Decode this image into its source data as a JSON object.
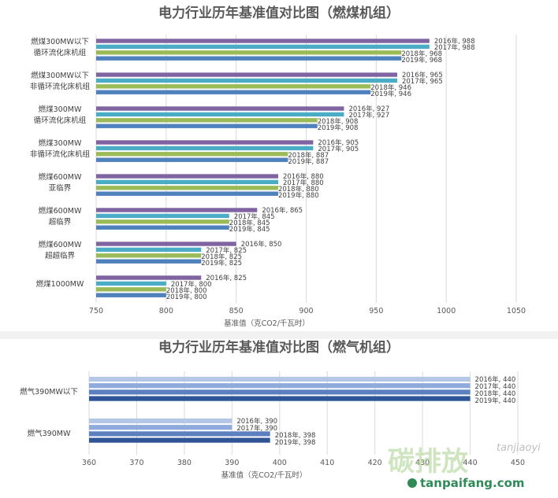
{
  "chart_data": [
    {
      "type": "bar",
      "orientation": "horizontal",
      "title": "电力行业历年基准值对比图（燃煤机组）",
      "xlabel": "基准值（克CO2/千瓦时）",
      "xlim": [
        750,
        1050
      ],
      "xticks": [
        "750",
        "800",
        "850",
        "900",
        "950",
        "1000",
        "1050"
      ],
      "grid": true,
      "categories": [
        [
          "燃煤300MW以下",
          "循环流化床机组"
        ],
        [
          "燃煤300MW以下",
          "非循环流化床机组"
        ],
        [
          "燃煤300MW",
          "循环流化床机组"
        ],
        [
          "燃煤300MW",
          "非循环流化床机组"
        ],
        [
          "燃煤600MW",
          "亚临界"
        ],
        [
          "燃煤600MW",
          "超临界"
        ],
        [
          "燃煤600MW",
          "超超临界"
        ],
        [
          "燃煤1000MW"
        ]
      ],
      "series": [
        {
          "name": "2016年",
          "color": "#8064a2",
          "values": [
            988,
            965,
            927,
            905,
            880,
            865,
            850,
            825
          ],
          "labels": [
            "2016年, 988",
            "2016年, 965",
            "2016年, 927",
            "2016年, 905",
            "2016年, 880",
            "2016年, 865",
            "2016年, 850",
            "2016年, 825"
          ]
        },
        {
          "name": "2017年",
          "color": "#4bacc6",
          "values": [
            988,
            965,
            927,
            905,
            880,
            845,
            825,
            800
          ],
          "labels": [
            "2017年, 988",
            "2017年, 965",
            "2017年, 927",
            "2017年, 905",
            "2017年, 880",
            "2017年, 845",
            "2017年, 825",
            "2017年, 800"
          ]
        },
        {
          "name": "2018年",
          "color": "#9bbb59",
          "values": [
            968,
            946,
            908,
            887,
            880,
            845,
            825,
            800
          ],
          "labels": [
            "2018年, 968",
            "2018年, 946",
            "2018年, 908",
            "2018年, 887",
            "2018年, 880",
            "2018年, 845",
            "2018年, 825",
            "2018年, 800"
          ]
        },
        {
          "name": "2019年",
          "color": "#4f81bd",
          "values": [
            968,
            946,
            908,
            887,
            880,
            845,
            825,
            800
          ],
          "labels": [
            "2019年, 968",
            "2019年, 946",
            "2019年, 908",
            "2019年, 887",
            "2019年, 880",
            "2019年, 845",
            "2019年, 825",
            "2019年, 800"
          ]
        }
      ]
    },
    {
      "type": "bar",
      "orientation": "horizontal",
      "title": "电力行业历年基准值对比图（燃气机组）",
      "xlabel": "基准值（克CO2/千瓦时）",
      "xlim": [
        360,
        450
      ],
      "xticks": [
        "360",
        "370",
        "380",
        "390",
        "400",
        "410",
        "420",
        "430",
        "440",
        "450"
      ],
      "grid": true,
      "categories": [
        [
          "燃气390MW以下"
        ],
        [
          "燃气390MW"
        ]
      ],
      "series": [
        {
          "name": "2016年",
          "color": "#b4c7e7",
          "values": [
            440,
            390
          ],
          "labels": [
            "2016年, 440",
            "2016年, 390"
          ]
        },
        {
          "name": "2017年",
          "color": "#8faadc",
          "values": [
            440,
            390
          ],
          "labels": [
            "2017年, 440",
            "2017年, 390"
          ]
        },
        {
          "name": "2018年",
          "color": "#5b7fbf",
          "values": [
            440,
            398
          ],
          "labels": [
            "2018年, 440",
            "2018年, 398"
          ]
        },
        {
          "name": "2019年",
          "color": "#2f5597",
          "values": [
            440,
            398
          ],
          "labels": [
            "2019年, 440",
            "2019年, 398"
          ]
        }
      ]
    }
  ],
  "watermark": {
    "logo_text": "碳排放",
    "pinyin": "tanjiaoyi",
    "url": "tanpaifang.com"
  }
}
